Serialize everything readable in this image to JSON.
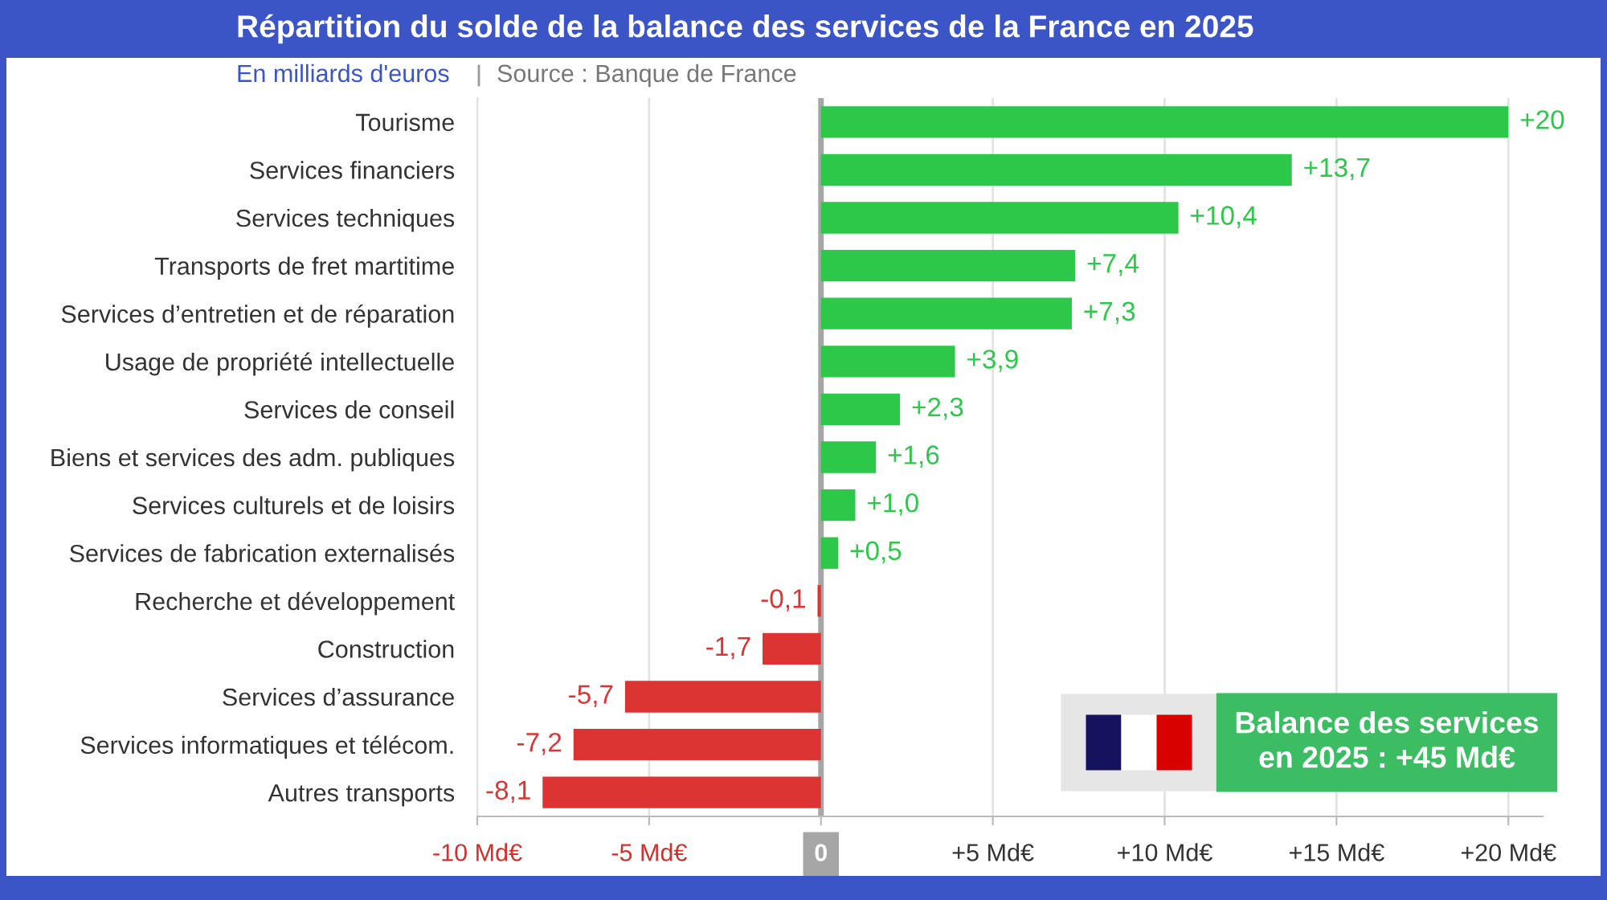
{
  "chart_data": {
    "type": "bar",
    "orientation": "horizontal",
    "title": "Répartition du solde de la balance des services de la France en 2025",
    "subtitle": "En milliards d'euros",
    "annotations": [
      "Source : Banque de France",
      "Balance des services\nen 2025 : +45 Md€"
    ],
    "categories": [
      "Tourisme",
      "Services financiers",
      "Services techniques",
      "Transports de fret martitime",
      "Services d’entretien et de réparation",
      "Usage de propriété intellectuelle",
      "Services de conseil",
      "Biens et services des adm. publiques",
      "Services culturels et de loisirs",
      "Services de fabrication externalisés",
      "Recherche et développement",
      "Construction",
      "Services d’assurance",
      "Services informatiques et télécom.",
      "Autres transports"
    ],
    "values": [
      20,
      13.7,
      10.4,
      7.4,
      7.3,
      3.9,
      2.3,
      1.6,
      1.0,
      0.5,
      -0.1,
      -1.7,
      -5.7,
      -7.2,
      -8.1
    ],
    "colors": [
      "#2dc84a",
      "#2dc84a",
      "#2dc84a",
      "#2dc84a",
      "#2dc84a",
      "#2dc84a",
      "#2dc84a",
      "#2dc84a",
      "#2dc84a",
      "#2dc84a",
      "#dc3333",
      "#dc3333",
      "#dc3333",
      "#dc3333",
      "#dc3333"
    ],
    "value_labels": [
      "+20",
      "+13,7",
      "+10,4",
      "+7,4",
      "+7,3",
      "+3,9",
      "+2,3",
      "+1,6",
      "+1,0",
      "+0,5",
      "-0,1",
      "-1,7",
      "-5,7",
      "-7,2",
      "-8,1"
    ],
    "xlim": [
      -10,
      21
    ],
    "xticks": [
      {
        "value": -10,
        "label": "-10 Md€"
      },
      {
        "value": -5,
        "label": "-5 Md€"
      },
      0,
      {
        "value": 5,
        "label": "+5 Md€"
      },
      {
        "value": 10,
        "label": "+10 Md€"
      },
      {
        "value": 15,
        "label": "+15 Md€"
      },
      {
        "value": 20,
        "label": "+20 Md€"
      }
    ],
    "grid": "x",
    "ref_lines": [
      {
        "axis": "x",
        "value": 0,
        "color": "#a6a6a6"
      }
    ]
  }
}
